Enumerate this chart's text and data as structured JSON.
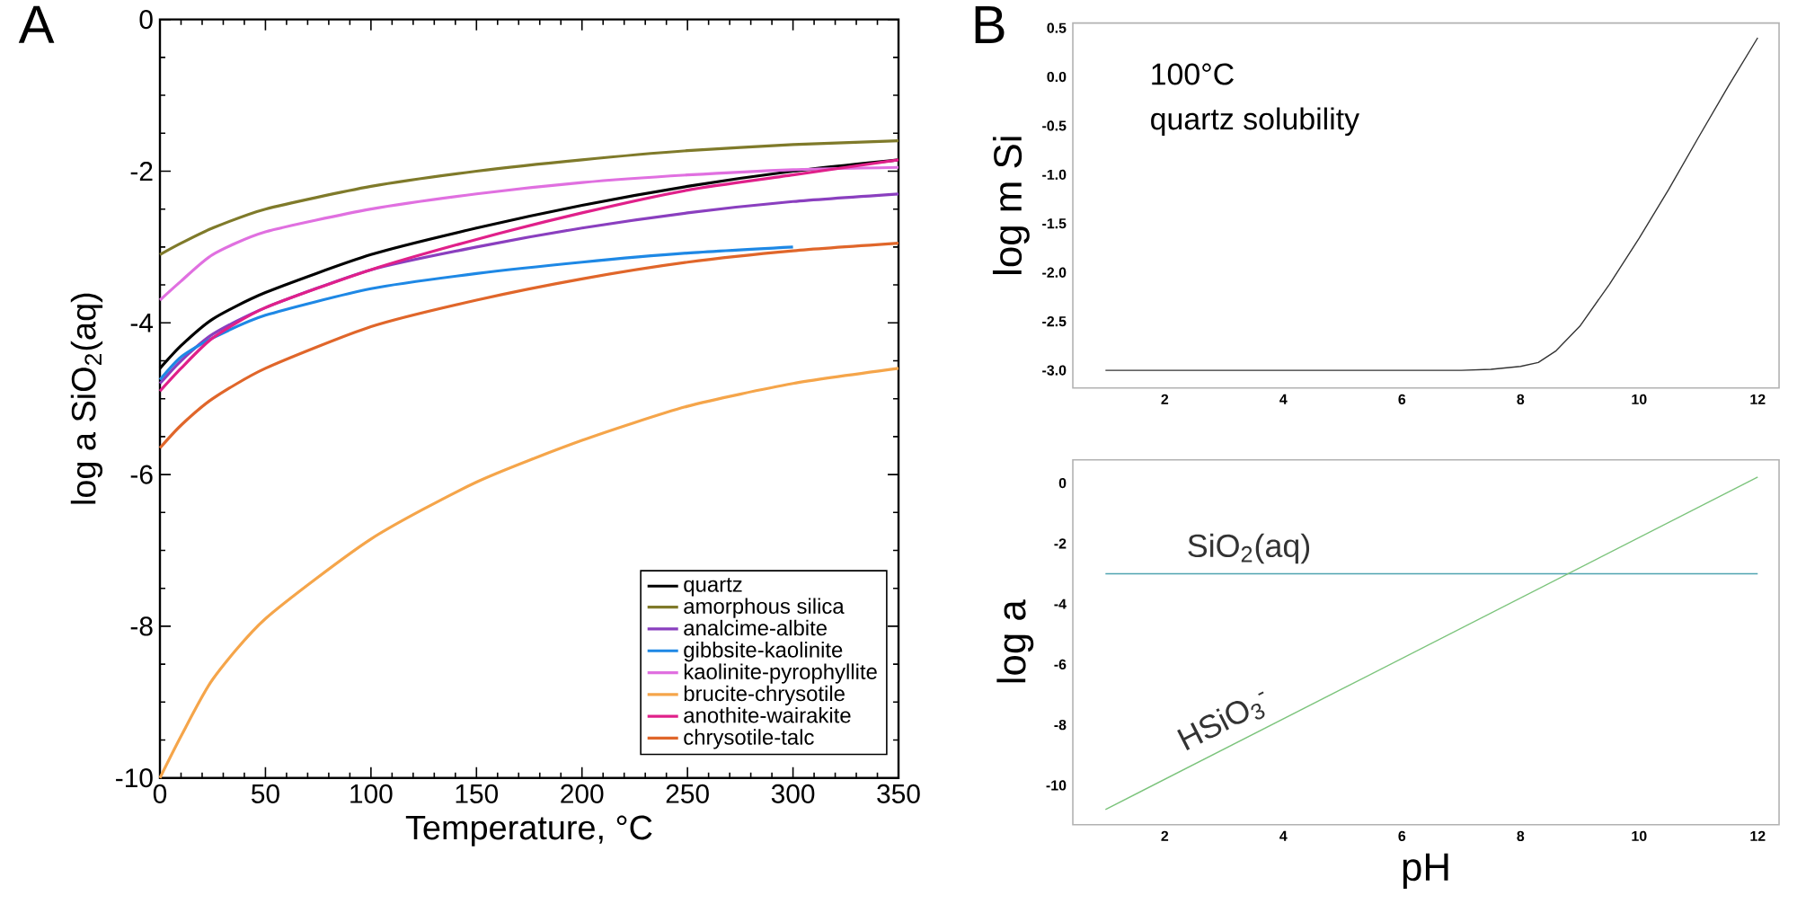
{
  "chart_data": [
    {
      "type": "line",
      "title": "A",
      "xlabel": "Temperature, °C",
      "ylabel": "log a SiO$_{2}$(aq)",
      "legend": "bottom right",
      "x": [
        0,
        10,
        25,
        50,
        100,
        150,
        200,
        250,
        300,
        350
      ],
      "xlim": [
        0,
        350
      ],
      "ylim": [
        -10,
        0
      ],
      "xticks": [
        0,
        50,
        100,
        150,
        200,
        250,
        300,
        350
      ],
      "yticks": [
        -10,
        -8,
        -6,
        -4,
        -2,
        0
      ],
      "series": [
        {
          "name": "quartz",
          "color": "#000000",
          "values": [
            -4.6,
            -4.3,
            -3.95,
            -3.6,
            -3.1,
            -2.75,
            -2.45,
            -2.2,
            -2.0,
            -1.85
          ]
        },
        {
          "name": "amorphous silica",
          "color": "#7f7a2a",
          "values": [
            -3.1,
            -2.95,
            -2.75,
            -2.5,
            -2.2,
            -2.0,
            -1.85,
            -1.73,
            -1.65,
            -1.6
          ]
        },
        {
          "name": "analcime-albite",
          "color": "#8a3fbf",
          "values": [
            -4.8,
            -4.5,
            -4.15,
            -3.8,
            -3.3,
            -3.0,
            -2.75,
            -2.55,
            -2.4,
            -2.3
          ]
        },
        {
          "name": "gibbsite-kaolinite",
          "color": "#1e88e5",
          "values": [
            -4.75,
            -4.45,
            -4.2,
            -3.9,
            -3.55,
            -3.35,
            -3.2,
            -3.08,
            -3.0,
            null
          ]
        },
        {
          "name": "kaolinite-pyrophyllite",
          "color": "#e070e0",
          "values": [
            -3.7,
            -3.45,
            -3.1,
            -2.8,
            -2.5,
            -2.3,
            -2.15,
            -2.05,
            -1.98,
            -1.95
          ]
        },
        {
          "name": "brucite-chrysotile",
          "color": "#f5a54a",
          "values": [
            -10,
            -9.45,
            -8.7,
            -7.9,
            -6.85,
            -6.1,
            -5.55,
            -5.1,
            -4.8,
            -4.6
          ]
        },
        {
          "name": "anothite-wairakite",
          "color": "#e0208a",
          "values": [
            -4.9,
            -4.6,
            -4.2,
            -3.8,
            -3.3,
            -2.9,
            -2.55,
            -2.25,
            -2.05,
            -1.85
          ]
        },
        {
          "name": "chrysotile-talc",
          "color": "#e0662a",
          "values": [
            -5.65,
            -5.35,
            -5.0,
            -4.6,
            -4.05,
            -3.7,
            -3.42,
            -3.2,
            -3.05,
            -2.95
          ]
        }
      ]
    },
    {
      "type": "line",
      "title": "B",
      "ylabel": "log m Si",
      "annotations": [
        "100°C",
        "quartz solubility"
      ],
      "x": [
        1,
        2,
        3,
        4,
        5,
        6,
        7,
        7.5,
        8,
        8.3,
        8.6,
        9,
        9.5,
        10,
        10.5,
        11,
        11.5,
        12
      ],
      "xlim": [
        0.45,
        12.36
      ],
      "ylim": [
        -3.18,
        0.55
      ],
      "xticks": [
        2,
        4,
        6,
        8,
        10,
        12
      ],
      "yticks": [
        {
          "value": -3,
          "label": "-3.0"
        },
        -2.5,
        {
          "value": -2,
          "label": "-2.0"
        },
        -1.5,
        {
          "value": -1,
          "label": "-1.0"
        },
        -0.5,
        {
          "value": 0,
          "label": "0.0"
        },
        0.5
      ],
      "series": [
        {
          "color": "#333333",
          "values": [
            -3.0,
            -3.0,
            -3.0,
            -3.0,
            -3.0,
            -3.0,
            -3.0,
            -2.99,
            -2.96,
            -2.92,
            -2.8,
            -2.55,
            -2.12,
            -1.65,
            -1.15,
            -0.62,
            -0.1,
            0.4
          ]
        }
      ]
    },
    {
      "type": "line",
      "xlabel": "pH",
      "ylabel": "log a",
      "x": [
        1,
        12
      ],
      "xlim": [
        0.45,
        12.36
      ],
      "ylim": [
        -11.3,
        0.77
      ],
      "xticks": [
        2,
        4,
        6,
        8,
        10,
        12
      ],
      "yticks": [
        -10,
        -8,
        -6,
        -4,
        -2,
        0
      ],
      "series": [
        {
          "name": "SiO$_{2}$(aq)",
          "color": "#4fa3b0",
          "values": [
            -3,
            -3
          ]
        },
        {
          "name": "HSiO$_{3}$$^{-}$",
          "color": "#7cc47c",
          "values": [
            -10.8,
            0.2
          ]
        }
      ]
    }
  ]
}
